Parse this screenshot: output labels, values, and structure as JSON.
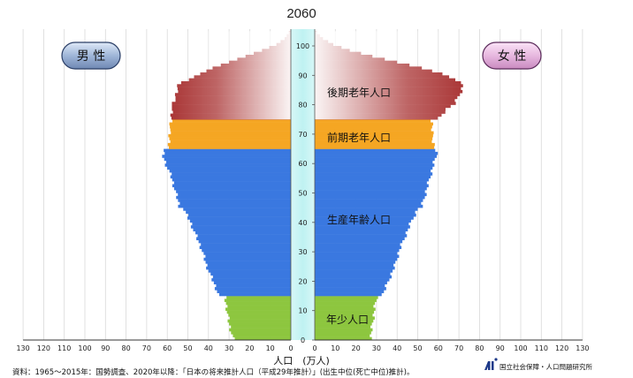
{
  "chart_data": {
    "type": "bar",
    "orientation": "population-pyramid",
    "title": "2060",
    "xlabel": "人口　(万人)",
    "x_ticks": [
      130,
      120,
      110,
      100,
      90,
      80,
      70,
      60,
      50,
      40,
      30,
      20,
      10,
      0
    ],
    "xlim": [
      0,
      130
    ],
    "y_ticks": [
      0,
      10,
      20,
      30,
      40,
      50,
      60,
      70,
      80,
      90,
      100
    ],
    "ylim": [
      0,
      105
    ],
    "grid": "vertical",
    "legend": {
      "male": "男 性",
      "female": "女 性"
    },
    "bands": [
      {
        "label": "年少人口",
        "age_min": 0,
        "age_max": 14,
        "color": "#8dc63f"
      },
      {
        "label": "生産年齢人口",
        "age_min": 15,
        "age_max": 64,
        "color": "#3a78e0"
      },
      {
        "label": "前期老年人口",
        "age_min": 65,
        "age_max": 74,
        "color": "#f5a623"
      },
      {
        "label": "後期老年人口",
        "age_min": 75,
        "age_max": 105,
        "color": "#a83232"
      }
    ],
    "male_profile": [
      [
        0,
        28
      ],
      [
        5,
        30
      ],
      [
        10,
        31
      ],
      [
        14,
        32
      ],
      [
        15,
        35
      ],
      [
        20,
        38
      ],
      [
        25,
        41
      ],
      [
        30,
        43
      ],
      [
        35,
        46
      ],
      [
        40,
        49
      ],
      [
        44,
        52
      ],
      [
        45,
        54
      ],
      [
        50,
        56
      ],
      [
        55,
        58
      ],
      [
        60,
        61
      ],
      [
        62,
        62
      ],
      [
        64,
        62
      ],
      [
        65,
        59
      ],
      [
        70,
        59
      ],
      [
        74,
        58
      ],
      [
        75,
        58
      ],
      [
        78,
        58
      ],
      [
        82,
        56
      ],
      [
        86,
        55
      ],
      [
        88,
        50
      ],
      [
        90,
        44
      ],
      [
        92,
        38
      ],
      [
        94,
        30
      ],
      [
        96,
        22
      ],
      [
        98,
        14
      ],
      [
        100,
        7
      ],
      [
        102,
        3
      ],
      [
        104,
        1
      ]
    ],
    "female_profile": [
      [
        0,
        27
      ],
      [
        5,
        28
      ],
      [
        10,
        29
      ],
      [
        14,
        30
      ],
      [
        15,
        33
      ],
      [
        20,
        36
      ],
      [
        25,
        39
      ],
      [
        30,
        41
      ],
      [
        35,
        44
      ],
      [
        40,
        47
      ],
      [
        44,
        50
      ],
      [
        45,
        52
      ],
      [
        50,
        54
      ],
      [
        55,
        56
      ],
      [
        60,
        58
      ],
      [
        62,
        59
      ],
      [
        64,
        59
      ],
      [
        65,
        58
      ],
      [
        70,
        57
      ],
      [
        74,
        57
      ],
      [
        75,
        60
      ],
      [
        78,
        64
      ],
      [
        80,
        68
      ],
      [
        84,
        71
      ],
      [
        86,
        72
      ],
      [
        88,
        69
      ],
      [
        90,
        62
      ],
      [
        92,
        52
      ],
      [
        94,
        40
      ],
      [
        96,
        28
      ],
      [
        98,
        17
      ],
      [
        100,
        9
      ],
      [
        102,
        4
      ],
      [
        104,
        1
      ]
    ]
  },
  "footnote": "資料：1965～2015年：国勢調査、2020年以降：「日本の将来推計人口（平成29年推計）」(出生中位(死亡中位)推計)。",
  "organization": "国立社会保障・人口問題研究所",
  "colors": {
    "background_center": "#c8f5f5",
    "label_pill": "#a9bfe0"
  }
}
